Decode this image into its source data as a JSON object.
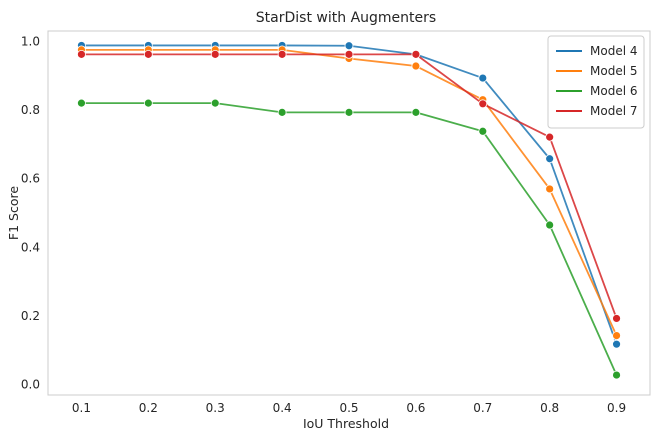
{
  "chart_data": {
    "type": "line",
    "title": "StarDist with Augmenters",
    "xlabel": "IoU Threshold",
    "ylabel": "F1 Score",
    "x": [
      0.1,
      0.2,
      0.3,
      0.4,
      0.5,
      0.6,
      0.7,
      0.8,
      0.9
    ],
    "x_tick_labels": [
      "0.1",
      "0.2",
      "0.3",
      "0.4",
      "0.5",
      "0.6",
      "0.7",
      "0.8",
      "0.9"
    ],
    "y_ticks": [
      0.0,
      0.2,
      0.4,
      0.6,
      0.8,
      1.0
    ],
    "y_tick_labels": [
      "0.0",
      "0.2",
      "0.4",
      "0.6",
      "0.8",
      "1.0"
    ],
    "xlim": [
      0.05,
      0.95
    ],
    "ylim": [
      -0.03,
      1.03
    ],
    "grid": true,
    "legend_position": "top-right",
    "series": [
      {
        "name": "Model 4",
        "color": "#1f77b4",
        "values": [
          0.988,
          0.988,
          0.988,
          0.988,
          0.987,
          0.962,
          0.893,
          0.658,
          0.118
        ]
      },
      {
        "name": "Model 5",
        "color": "#ff7f0e",
        "values": [
          0.975,
          0.975,
          0.975,
          0.975,
          0.95,
          0.928,
          0.83,
          0.57,
          0.143
        ]
      },
      {
        "name": "Model 6",
        "color": "#2ca02c",
        "values": [
          0.82,
          0.82,
          0.82,
          0.793,
          0.793,
          0.793,
          0.738,
          0.465,
          0.028
        ]
      },
      {
        "name": "Model 7",
        "color": "#d62728",
        "values": [
          0.962,
          0.962,
          0.962,
          0.962,
          0.962,
          0.962,
          0.818,
          0.721,
          0.193
        ]
      }
    ]
  }
}
